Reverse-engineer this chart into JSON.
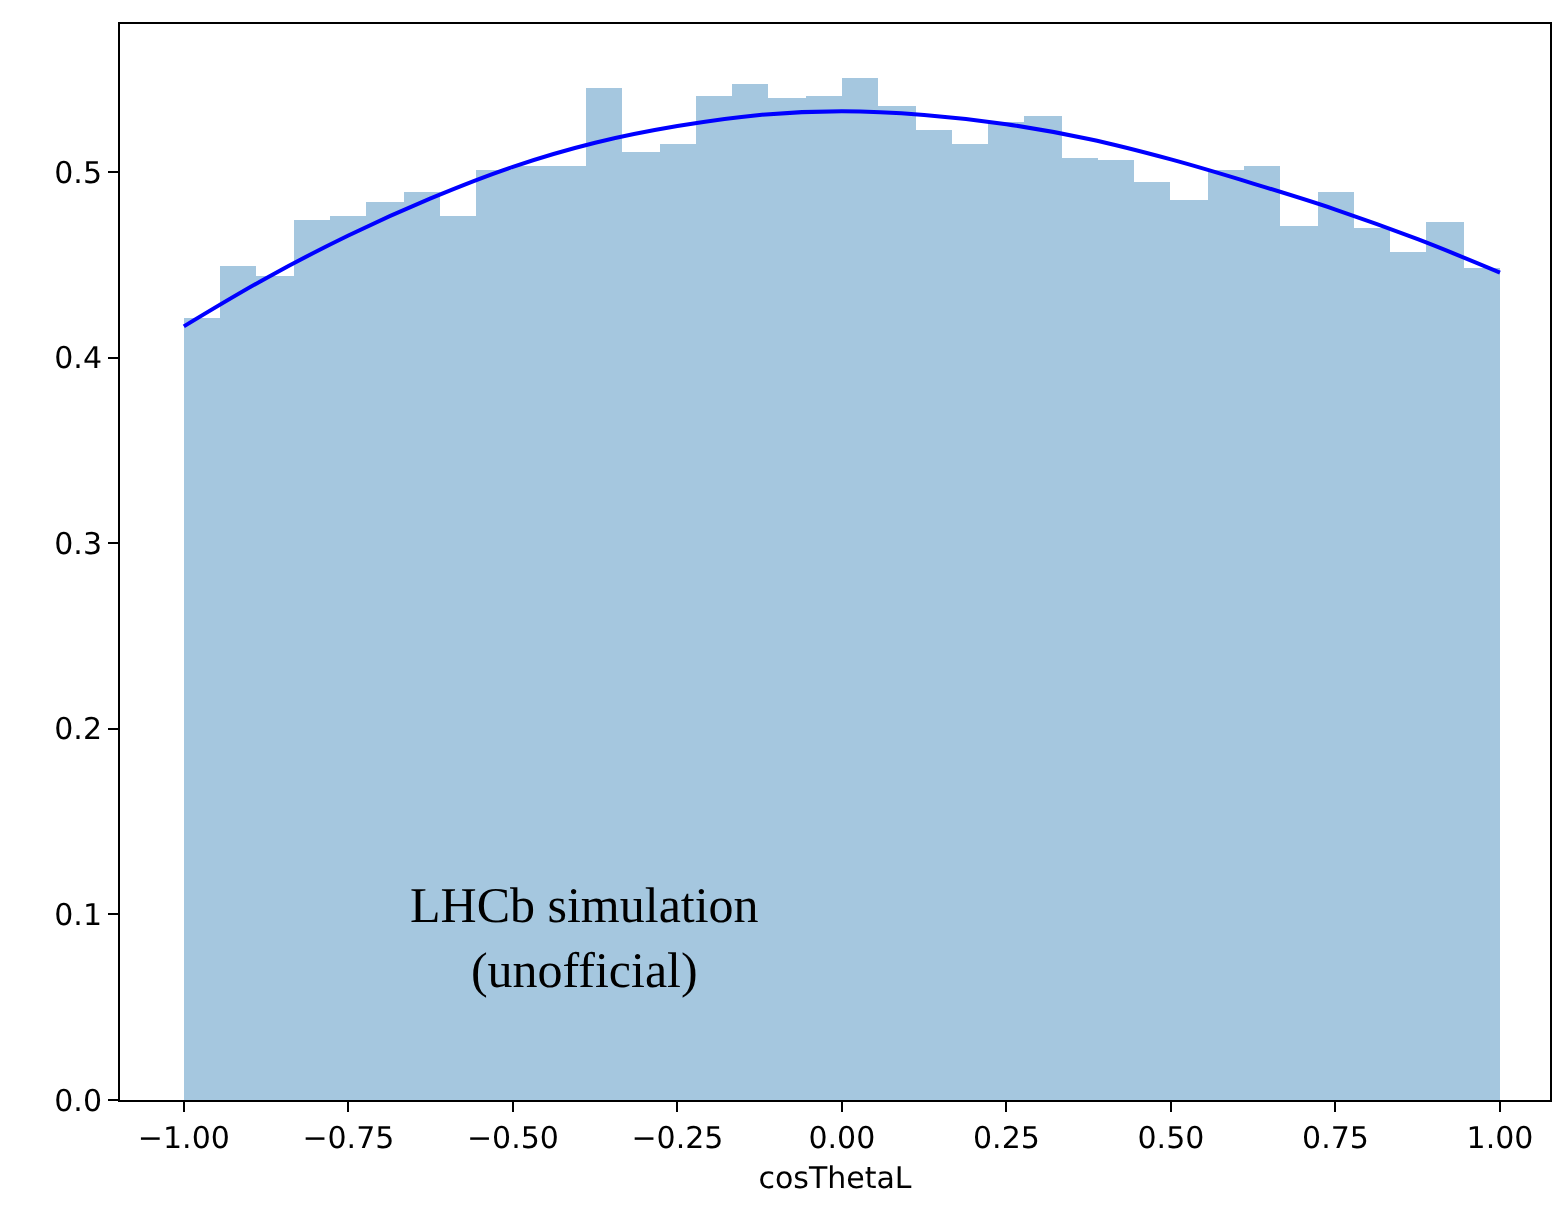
{
  "chart_data": {
    "type": "histogram",
    "xlabel": "cosThetaL",
    "annotations": [
      "LHCb simulation\n(unofficial)"
    ],
    "xlim": [
      -1.097,
      1.076
    ],
    "ylim": [
      0,
      0.58
    ],
    "xticks": [
      {
        "value": -1,
        "label": "−1.00"
      },
      {
        "value": -0.75,
        "label": "−0.75"
      },
      {
        "value": -0.5,
        "label": "−0.50"
      },
      {
        "value": -0.25,
        "label": "−0.25"
      },
      {
        "value": 0,
        "label": "0.00"
      },
      {
        "value": 0.25,
        "label": "0.25"
      },
      {
        "value": 0.5,
        "label": "0.50"
      },
      {
        "value": 0.75,
        "label": "0.75"
      },
      {
        "value": 1,
        "label": "1.00"
      }
    ],
    "yticks": [
      {
        "value": 0,
        "label": "0.0"
      },
      0.1,
      0.2,
      0.3,
      0.4,
      0.5
    ],
    "series": [
      {
        "color": "#a5c7df",
        "bins": [
          -1.0,
          -0.9444,
          -0.8889,
          -0.8333,
          -0.7778,
          -0.7222,
          -0.6667,
          -0.6111,
          -0.5556,
          -0.5,
          -0.4444,
          -0.3889,
          -0.3333,
          -0.2778,
          -0.2222,
          -0.1667,
          -0.1111,
          -0.0556,
          0.0,
          0.0556,
          0.1111,
          0.1667,
          0.2222,
          0.2778,
          0.3333,
          0.3889,
          0.4444,
          0.5,
          0.5556,
          0.6111,
          0.6667,
          0.7222,
          0.7778,
          0.8333,
          0.8889,
          0.9444,
          1.0
        ],
        "values": [
          0.421,
          0.45,
          0.444,
          0.474,
          0.477,
          0.484,
          0.489,
          0.476,
          0.501,
          0.504,
          0.503,
          0.546,
          0.511,
          0.515,
          0.541,
          0.548,
          0.54,
          0.541,
          0.551,
          0.536,
          0.523,
          0.515,
          0.527,
          0.53,
          0.508,
          0.507,
          0.495,
          0.485,
          0.501,
          0.503,
          0.471,
          0.489,
          0.47,
          0.457,
          0.473,
          0.448
        ]
      },
      {
        "type": "line",
        "color": "#0000ff",
        "x": [
          -1,
          -0.875,
          -0.75,
          -0.625,
          -0.5,
          -0.375,
          -0.25,
          -0.125,
          0,
          0.125,
          0.25,
          0.375,
          0.5,
          0.625,
          0.75,
          0.875,
          1
        ],
        "values": [
          0.417,
          0.443,
          0.466,
          0.486,
          0.503,
          0.516,
          0.525,
          0.531,
          0.533,
          0.531,
          0.526,
          0.518,
          0.507,
          0.494,
          0.48,
          0.464,
          0.446
        ]
      }
    ]
  }
}
